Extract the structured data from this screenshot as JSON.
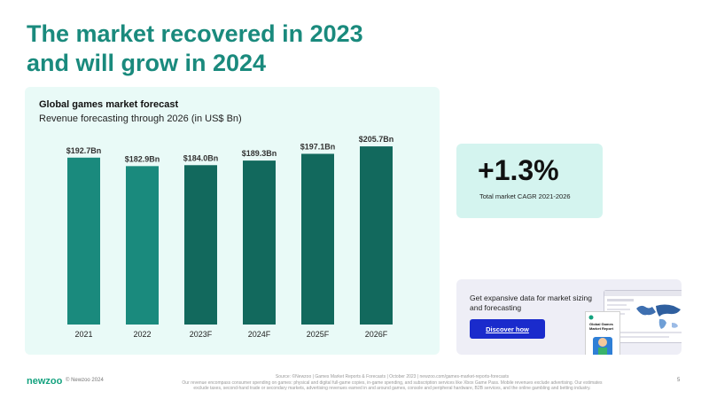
{
  "title_lines": [
    "The market recovered in 2023",
    "and will grow in 2024"
  ],
  "chart_data": {
    "type": "bar",
    "title": "Global games market forecast",
    "subtitle": "Revenue forecasting through 2026 (in US$ Bn)",
    "categories": [
      "2021",
      "2022",
      "2023F",
      "2024F",
      "2025F",
      "2026F"
    ],
    "values": [
      192.7,
      182.9,
      184.0,
      189.3,
      197.1,
      205.7
    ],
    "data_labels": [
      "$192.7Bn",
      "$182.9Bn",
      "$184.0Bn",
      "$189.3Bn",
      "$197.1Bn",
      "$205.7Bn"
    ],
    "bar_colors": [
      "#1a8a7d",
      "#1a8a7d",
      "#12695d",
      "#12695d",
      "#12695d",
      "#12695d"
    ],
    "ylim": [
      0,
      215
    ],
    "grid": false,
    "legend": "none"
  },
  "stat": {
    "value": "+1.3%",
    "label": "Total market CAGR 2021-2026"
  },
  "promo": {
    "text": "Get expansive data for market sizing and forecasting",
    "button_label": "Discover how",
    "report_title": "Global Games Market Report"
  },
  "footer": {
    "logo": "newzoo",
    "copyright": "© Newzoo 2024",
    "source_lines": [
      "Source: ©Newzoo | Games Market Reports & Forecasts | October 2023 | newzoo.com/games-market-reports-forecasts",
      "Our revenue encompass consumer spending on games: physical and digital full-game copies, in-game spending, and subscription services like Xbox Game Pass. Mobile revenues exclude advertising. Our estimates",
      "exclude taxes, second-hand trade or secondary markets, advertising revenues earned in and around games, console and peripheral hardware, B2B services, and the online gambling and betting industry."
    ],
    "page_number": "5"
  },
  "colors": {
    "accent": "#1a8a7d",
    "chart_bg": "#e9faf7",
    "stat_bg": "#d4f4ef",
    "promo_bg": "#eeeef6",
    "button": "#1a2bcc",
    "logo": "#14a27f"
  }
}
